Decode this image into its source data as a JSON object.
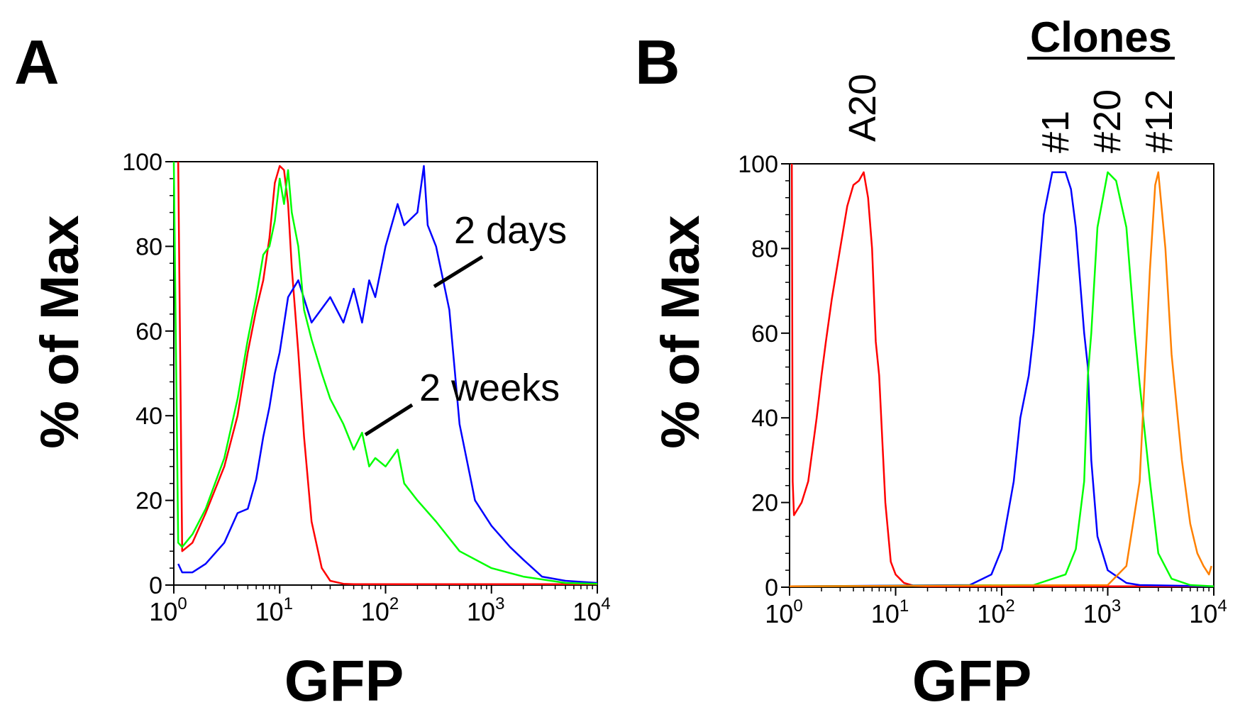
{
  "chart_data": [
    {
      "type": "line",
      "panel_label": "A",
      "title": "",
      "xlabel": "GFP",
      "ylabel": "% of Max",
      "xscale": "log",
      "xlim": [
        1,
        10000
      ],
      "ylim": [
        0,
        100
      ],
      "xticks": [
        {
          "base": "10",
          "exp": "0"
        },
        {
          "base": "10",
          "exp": "1"
        },
        {
          "base": "10",
          "exp": "2"
        },
        {
          "base": "10",
          "exp": "3"
        },
        {
          "base": "10",
          "exp": "4"
        }
      ],
      "yticks": [
        "0",
        "20",
        "40",
        "60",
        "80",
        "100"
      ],
      "legend": "none",
      "grid": false,
      "annotations": [
        "2 days",
        "2 weeks"
      ],
      "series": [
        {
          "color": "#ff0000",
          "x": [
            1.1,
            1.2,
            1.5,
            2,
            3,
            4,
            5,
            6,
            7,
            8,
            9,
            10,
            11,
            12,
            13,
            15,
            17,
            20,
            25,
            30,
            40,
            50,
            100,
            1000,
            10000
          ],
          "y": [
            100,
            8,
            10,
            17,
            28,
            40,
            55,
            65,
            72,
            82,
            95,
            99,
            98,
            90,
            75,
            55,
            35,
            15,
            4,
            1,
            0.3,
            0.2,
            0.2,
            0.2,
            0.2
          ]
        },
        {
          "color": "#0000ff",
          "x": [
            1.1,
            1.2,
            1.5,
            2,
            3,
            4,
            5,
            6,
            7,
            8,
            9,
            10,
            12,
            15,
            20,
            30,
            40,
            50,
            60,
            70,
            80,
            100,
            130,
            150,
            200,
            230,
            250,
            300,
            400,
            500,
            700,
            1000,
            1500,
            2000,
            3000,
            5000,
            10000
          ],
          "y": [
            5,
            3,
            3,
            5,
            10,
            17,
            18,
            25,
            35,
            42,
            50,
            55,
            68,
            72,
            62,
            68,
            62,
            70,
            62,
            72,
            68,
            80,
            90,
            85,
            88,
            99,
            85,
            80,
            65,
            38,
            20,
            14,
            9,
            6,
            2,
            1,
            0.5
          ]
        },
        {
          "color": "#00ff00",
          "x": [
            1.0,
            1.1,
            1.2,
            1.5,
            2,
            3,
            4,
            5,
            6,
            7,
            8,
            9,
            10,
            11,
            12,
            13,
            15,
            17,
            20,
            25,
            30,
            40,
            50,
            60,
            70,
            80,
            100,
            130,
            150,
            200,
            300,
            500,
            1000,
            2000,
            5000,
            10000
          ],
          "y": [
            100,
            10,
            9,
            12,
            18,
            30,
            44,
            58,
            68,
            78,
            80,
            86,
            96,
            90,
            98,
            88,
            80,
            65,
            58,
            50,
            44,
            38,
            32,
            36,
            28,
            30,
            28,
            32,
            24,
            20,
            15,
            8,
            4,
            2,
            0.5,
            0.3
          ]
        }
      ]
    },
    {
      "type": "line",
      "panel_label": "B",
      "title": "",
      "xlabel": "GFP",
      "ylabel": "% of Max",
      "xscale": "log",
      "xlim": [
        1,
        10000
      ],
      "ylim": [
        0,
        100
      ],
      "xticks": [
        {
          "base": "10",
          "exp": "0"
        },
        {
          "base": "10",
          "exp": "1"
        },
        {
          "base": "10",
          "exp": "2"
        },
        {
          "base": "10",
          "exp": "3"
        },
        {
          "base": "10",
          "exp": "4"
        }
      ],
      "yticks": [
        "0",
        "20",
        "40",
        "60",
        "80",
        "100"
      ],
      "legend": "none",
      "grid": false,
      "header": "Clones",
      "peak_labels": [
        "A20",
        "#1",
        "#20",
        "#12"
      ],
      "series": [
        {
          "color": "#ff0000",
          "x": [
            1.05,
            1.07,
            1.1,
            1.3,
            1.5,
            1.8,
            2,
            2.2,
            2.5,
            3,
            3.5,
            4,
            4.5,
            5,
            5.5,
            6,
            6.5,
            7,
            8,
            9,
            10,
            12,
            15,
            20,
            30,
            10000
          ],
          "y": [
            100,
            25,
            17,
            20,
            25,
            40,
            50,
            58,
            68,
            80,
            90,
            95,
            96,
            98,
            92,
            80,
            58,
            50,
            20,
            6,
            3,
            1,
            0.3,
            0.2,
            0.2,
            0.2
          ]
        },
        {
          "color": "#0000ff",
          "x": [
            1,
            50,
            80,
            100,
            130,
            150,
            180,
            200,
            250,
            300,
            350,
            400,
            450,
            500,
            600,
            650,
            700,
            800,
            1000,
            1500,
            2000,
            10000
          ],
          "y": [
            0.2,
            0.5,
            3,
            9,
            25,
            40,
            50,
            60,
            88,
            98,
            98,
            98,
            94,
            85,
            60,
            52,
            30,
            12,
            4,
            1,
            0.5,
            0.2
          ]
        },
        {
          "color": "#00ff00",
          "x": [
            1,
            200,
            400,
            500,
            600,
            650,
            700,
            800,
            1000,
            1200,
            1500,
            1800,
            2000,
            2500,
            3000,
            4000,
            6000,
            10000
          ],
          "y": [
            0.2,
            0.5,
            3,
            9,
            25,
            50,
            60,
            85,
            98,
            96,
            85,
            60,
            48,
            25,
            8,
            2,
            0.5,
            0.2
          ]
        },
        {
          "color": "#ff8000",
          "x": [
            1,
            1000,
            1500,
            2000,
            2500,
            2800,
            3000,
            3500,
            4000,
            5000,
            6000,
            7000,
            8000,
            9000,
            9500
          ],
          "y": [
            0.2,
            0.5,
            5,
            25,
            75,
            95,
            98,
            80,
            55,
            30,
            15,
            8,
            5,
            3,
            5
          ]
        }
      ]
    }
  ]
}
